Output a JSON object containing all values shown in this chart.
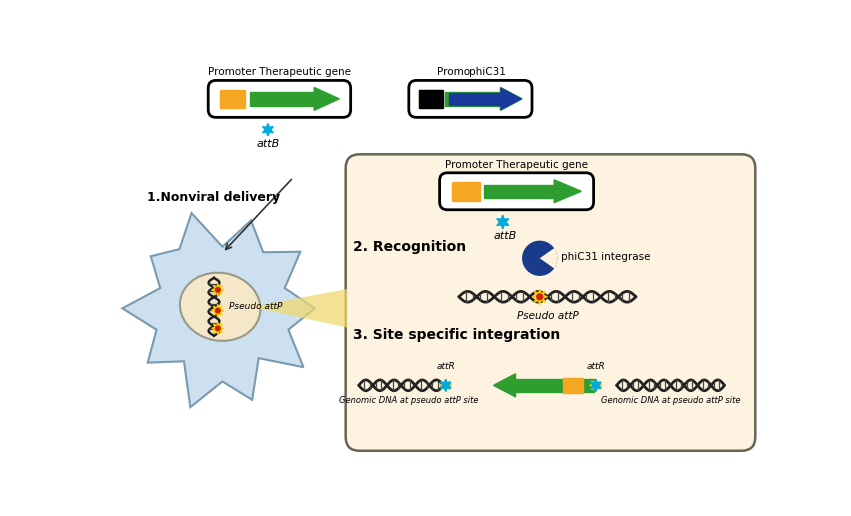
{
  "bg_color": "#ffffff",
  "cell_bg": "#cce0f0",
  "nucleus_bg": "#f5e8c8",
  "right_panel_bg": "#fdf3e0",
  "orange_color": "#f5a623",
  "green_color": "#2e9e30",
  "blue_color": "#1a3a9c",
  "dark_blue_color": "#1a3a8c",
  "cyan_star": "#00aadd",
  "text_color": "#000000",
  "title1": "Promoter Therapeutic gene",
  "label_promo": "Promo",
  "label_phic31_title": "phiC31",
  "label_attB": "attB",
  "label_nonviral": "1.Nonviral delivery",
  "label_pseudo": "Pseudo attP",
  "label_recognition": "2. Recognition",
  "label_phic31": "phiC31 integrase",
  "label_pseudo2": "Pseudo attP",
  "label_integration": "3. Site specific integration",
  "label_attR1": "attR",
  "label_attR2": "attR",
  "label_genomic1": "Genomic DNA at pseudo attP site",
  "label_genomic2": "Genomic DNA at pseudo attP site",
  "label_promoter2": "Promoter Therapeutic gene"
}
